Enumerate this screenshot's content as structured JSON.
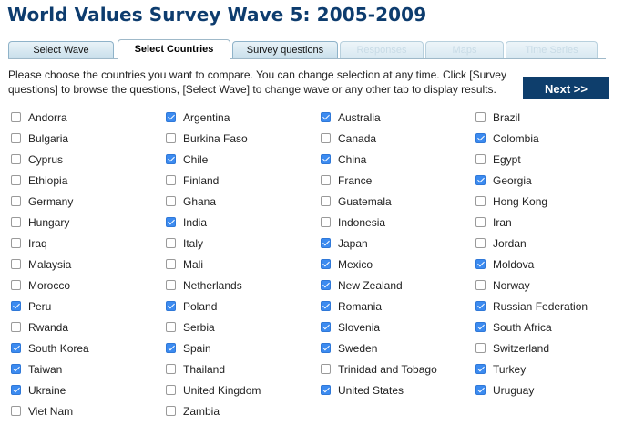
{
  "title": "World Values Survey Wave 5: 2005-2009",
  "tabs": [
    {
      "label": "Select Wave",
      "state": "normal"
    },
    {
      "label": "Select Countries",
      "state": "active"
    },
    {
      "label": "Survey questions",
      "state": "normal"
    },
    {
      "label": "Responses",
      "state": "disabled"
    },
    {
      "label": "Maps",
      "state": "disabled"
    },
    {
      "label": "Time Series",
      "state": "disabled"
    }
  ],
  "instructions": "Please choose the countries you want to compare. You can change selection at any time. Click [Survey questions] to browse the questions, [Select Wave] to change wave or any other tab to display results.",
  "next_label": "Next >>",
  "countries": [
    {
      "name": "Andorra",
      "checked": false
    },
    {
      "name": "Argentina",
      "checked": true
    },
    {
      "name": "Australia",
      "checked": true
    },
    {
      "name": "Brazil",
      "checked": false
    },
    {
      "name": "Bulgaria",
      "checked": false
    },
    {
      "name": "Burkina Faso",
      "checked": false
    },
    {
      "name": "Canada",
      "checked": false
    },
    {
      "name": "Colombia",
      "checked": true
    },
    {
      "name": "Cyprus",
      "checked": false
    },
    {
      "name": "Chile",
      "checked": true
    },
    {
      "name": "China",
      "checked": true
    },
    {
      "name": "Egypt",
      "checked": false
    },
    {
      "name": "Ethiopia",
      "checked": false
    },
    {
      "name": "Finland",
      "checked": false
    },
    {
      "name": "France",
      "checked": false
    },
    {
      "name": "Georgia",
      "checked": true
    },
    {
      "name": "Germany",
      "checked": false
    },
    {
      "name": "Ghana",
      "checked": false
    },
    {
      "name": "Guatemala",
      "checked": false
    },
    {
      "name": "Hong Kong",
      "checked": false
    },
    {
      "name": "Hungary",
      "checked": false
    },
    {
      "name": "India",
      "checked": true
    },
    {
      "name": "Indonesia",
      "checked": false
    },
    {
      "name": "Iran",
      "checked": false
    },
    {
      "name": "Iraq",
      "checked": false
    },
    {
      "name": "Italy",
      "checked": false
    },
    {
      "name": "Japan",
      "checked": true
    },
    {
      "name": "Jordan",
      "checked": false
    },
    {
      "name": "Malaysia",
      "checked": false
    },
    {
      "name": "Mali",
      "checked": false
    },
    {
      "name": "Mexico",
      "checked": true
    },
    {
      "name": "Moldova",
      "checked": true
    },
    {
      "name": "Morocco",
      "checked": false
    },
    {
      "name": "Netherlands",
      "checked": false
    },
    {
      "name": "New Zealand",
      "checked": true
    },
    {
      "name": "Norway",
      "checked": false
    },
    {
      "name": "Peru",
      "checked": true
    },
    {
      "name": "Poland",
      "checked": true
    },
    {
      "name": "Romania",
      "checked": true
    },
    {
      "name": "Russian Federation",
      "checked": true
    },
    {
      "name": "Rwanda",
      "checked": false
    },
    {
      "name": "Serbia",
      "checked": false
    },
    {
      "name": "Slovenia",
      "checked": true
    },
    {
      "name": "South Africa",
      "checked": true
    },
    {
      "name": "South Korea",
      "checked": true
    },
    {
      "name": "Spain",
      "checked": true
    },
    {
      "name": "Sweden",
      "checked": true
    },
    {
      "name": "Switzerland",
      "checked": false
    },
    {
      "name": "Taiwan",
      "checked": true
    },
    {
      "name": "Thailand",
      "checked": false
    },
    {
      "name": "Trinidad and Tobago",
      "checked": false
    },
    {
      "name": "Turkey",
      "checked": true
    },
    {
      "name": "Ukraine",
      "checked": true
    },
    {
      "name": "United Kingdom",
      "checked": false
    },
    {
      "name": "United States",
      "checked": true
    },
    {
      "name": "Uruguay",
      "checked": true
    },
    {
      "name": "Viet Nam",
      "checked": false
    },
    {
      "name": "Zambia",
      "checked": false
    }
  ],
  "colors": {
    "title": "#0d3c6e",
    "next_button": "#0e3e6c",
    "checkbox_checked": "#3c8bf0"
  }
}
